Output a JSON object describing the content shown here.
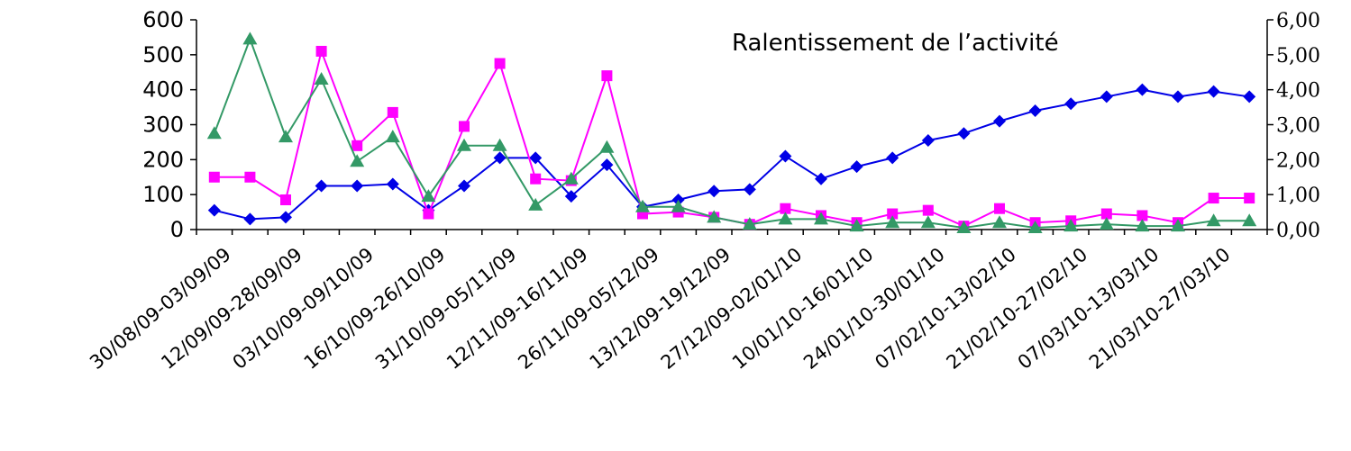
{
  "chart_data": {
    "type": "line",
    "title": "",
    "annotation": "Ralentissement de l’activité",
    "xlabel": "",
    "ylabel_left": "",
    "ylabel_right": "",
    "ylim_left": [
      0,
      600
    ],
    "ylim_right": [
      0,
      6
    ],
    "yticks_left": [
      "0",
      "100",
      "200",
      "300",
      "400",
      "500",
      "600"
    ],
    "yticks_right": [
      "0,00",
      "1,00",
      "2,00",
      "3,00",
      "4,00",
      "5,00",
      "6,00"
    ],
    "grid": false,
    "legend": "none",
    "categories": [
      "30/08/09-03/09/09",
      "",
      "12/09/09-28/09/09",
      "",
      "03/10/09-09/10/09",
      "",
      "16/10/09-26/10/09",
      "",
      "31/10/09-05/11/09",
      "",
      "12/11/09-16/11/09",
      "",
      "26/11/09-05/12/09",
      "",
      "13/12/09-19/12/09",
      "",
      "27/12/09-02/01/10",
      "",
      "10/01/10-16/01/10",
      "",
      "24/01/10-30/01/10",
      "",
      "07/02/10-13/02/10",
      "",
      "21/02/10-27/02/10",
      "",
      "07/03/10-13/03/10",
      "",
      "21/03/10-27/03/10",
      ""
    ],
    "series": [
      {
        "axis": "right",
        "marker": "diamond",
        "color": "#0000e6",
        "values": [
          0.55,
          0.3,
          0.35,
          1.25,
          1.25,
          1.3,
          0.55,
          1.25,
          2.05,
          2.05,
          0.95,
          1.85,
          0.65,
          0.85,
          1.1,
          1.15,
          2.1,
          1.45,
          1.8,
          2.05,
          2.55,
          2.75,
          3.1,
          3.4,
          3.6,
          3.8,
          4.0,
          3.8,
          3.95,
          3.8
        ]
      },
      {
        "axis": "left",
        "marker": "square",
        "color": "#ff00ff",
        "values": [
          150,
          150,
          85,
          510,
          240,
          335,
          45,
          295,
          475,
          145,
          140,
          440,
          45,
          50,
          35,
          15,
          60,
          40,
          20,
          45,
          55,
          10,
          60,
          20,
          25,
          45,
          40,
          20,
          90,
          90
        ]
      },
      {
        "axis": "left",
        "marker": "triangle",
        "color": "#339966",
        "values": [
          275,
          545,
          265,
          430,
          195,
          265,
          95,
          240,
          240,
          70,
          145,
          235,
          65,
          65,
          35,
          15,
          30,
          30,
          10,
          20,
          20,
          5,
          20,
          5,
          10,
          15,
          10,
          10,
          25,
          25
        ]
      }
    ]
  }
}
